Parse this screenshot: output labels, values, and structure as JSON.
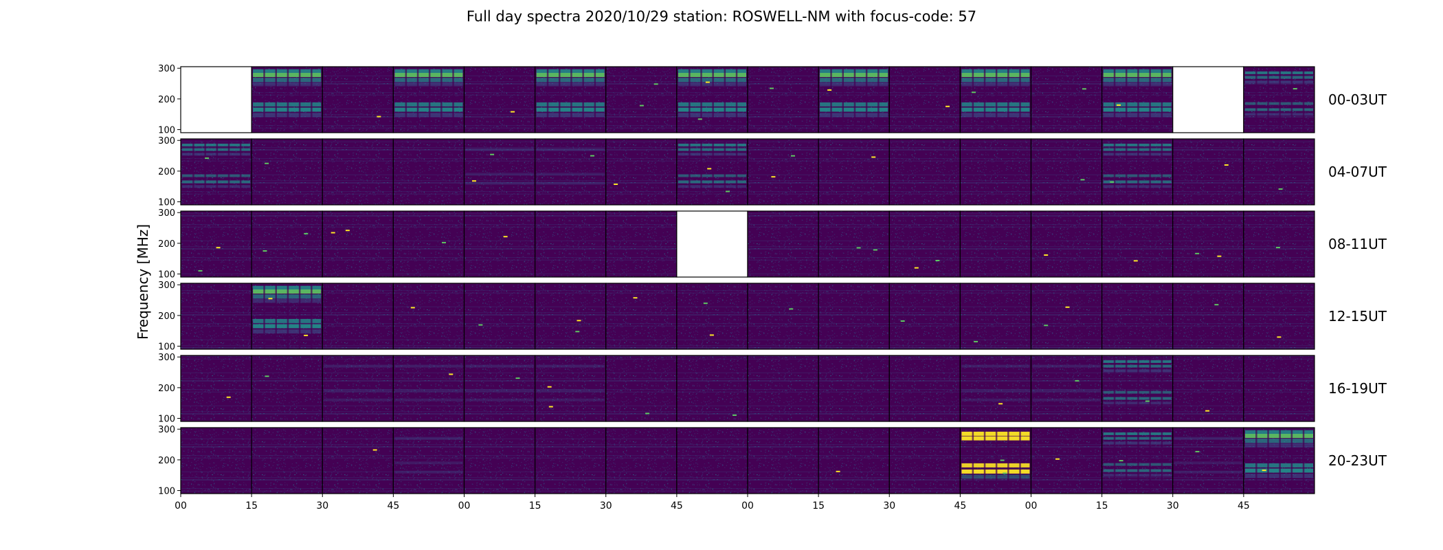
{
  "chart_data": {
    "type": "heatmap",
    "title": "Full day spectra 2020/10/29 station: ROSWELL-NM with focus-code: 57",
    "xlabel": "",
    "ylabel": "Frequency [MHz]",
    "colormap": "viridis",
    "colors": {
      "low": "#440154",
      "mid_low": "#3b528b",
      "mid": "#21918c",
      "mid_high": "#5ec962",
      "high": "#fde725"
    },
    "ylim": [
      90,
      305
    ],
    "y_ticks": [
      100,
      200,
      300
    ],
    "x_tick_labels": [
      "00",
      "15",
      "30",
      "45",
      "00",
      "15",
      "30",
      "45",
      "00",
      "15",
      "30",
      "45",
      "00",
      "15",
      "30",
      "45"
    ],
    "panels_per_row": 16,
    "panel_minutes": 15,
    "rows": [
      {
        "label": "00-03UT",
        "levels": [
          -1,
          3,
          0,
          3,
          0,
          3,
          0,
          3,
          0,
          3,
          0,
          3,
          0,
          3,
          -1,
          2
        ]
      },
      {
        "label": "04-07UT",
        "levels": [
          2,
          0,
          0,
          0,
          1,
          1,
          0,
          2,
          0,
          0,
          0,
          0,
          0,
          2,
          0,
          0
        ]
      },
      {
        "label": "08-11UT",
        "levels": [
          0,
          0,
          0,
          0,
          0,
          0,
          0,
          -1,
          0,
          0,
          0,
          0,
          0,
          0,
          0,
          0
        ]
      },
      {
        "label": "12-15UT",
        "levels": [
          0,
          3,
          0,
          0,
          0,
          0,
          0,
          0,
          0,
          0,
          0,
          0,
          0,
          0,
          0,
          0
        ]
      },
      {
        "label": "16-19UT",
        "levels": [
          0,
          0,
          1,
          1,
          1,
          1,
          0,
          0,
          0,
          0,
          0,
          1,
          1,
          2,
          0,
          0
        ]
      },
      {
        "label": "20-23UT",
        "levels": [
          0,
          0,
          0,
          1,
          0,
          0,
          0,
          0,
          0,
          0,
          0,
          4,
          0,
          2,
          1,
          3
        ]
      }
    ],
    "grid": false
  }
}
